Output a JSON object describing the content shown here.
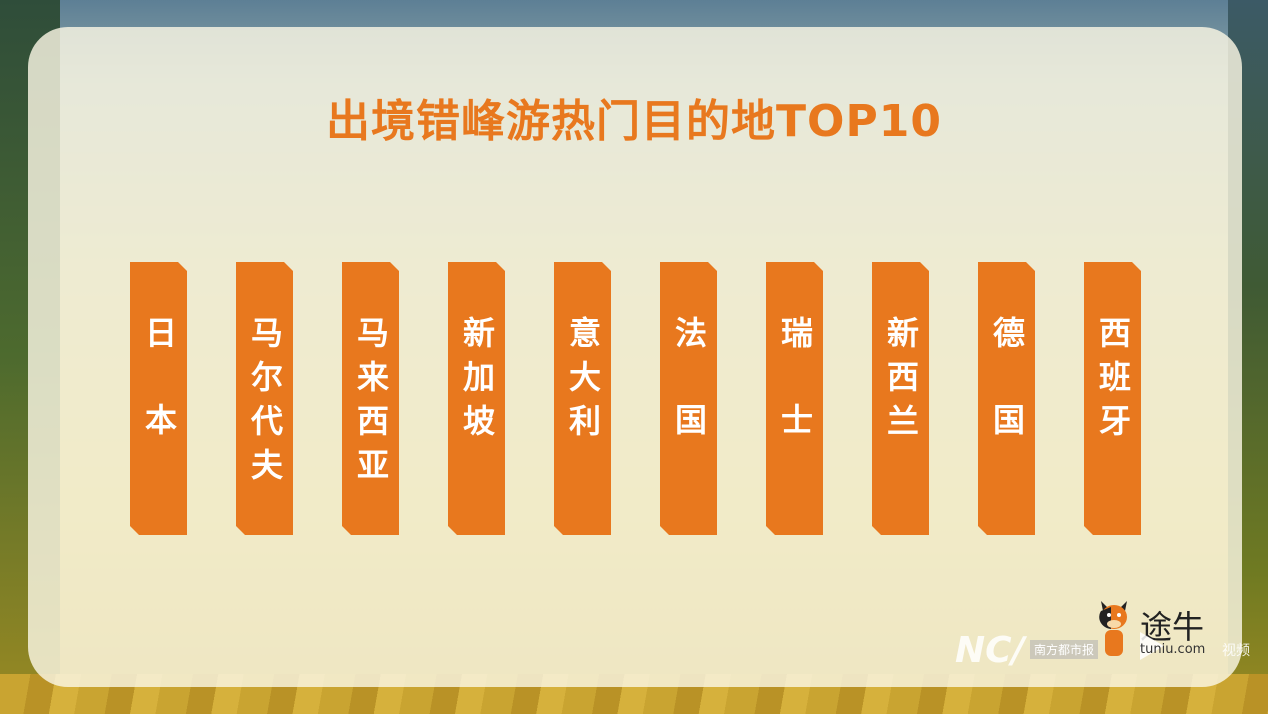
{
  "title": "出境错峰游热门目的地TOP10",
  "destinations": [
    "日本",
    "马尔代夫",
    "马来西亚",
    "新加坡",
    "意大利",
    "法国",
    "瑞士",
    "新西兰",
    "德国",
    "西班牙"
  ],
  "accent_color": "#e8781e",
  "watermarks": {
    "newspaper_logo": "NC/",
    "newspaper_name": "南方都市报",
    "brand_name": "途牛",
    "brand_url": "tuniu.com",
    "video_label": "视频"
  }
}
